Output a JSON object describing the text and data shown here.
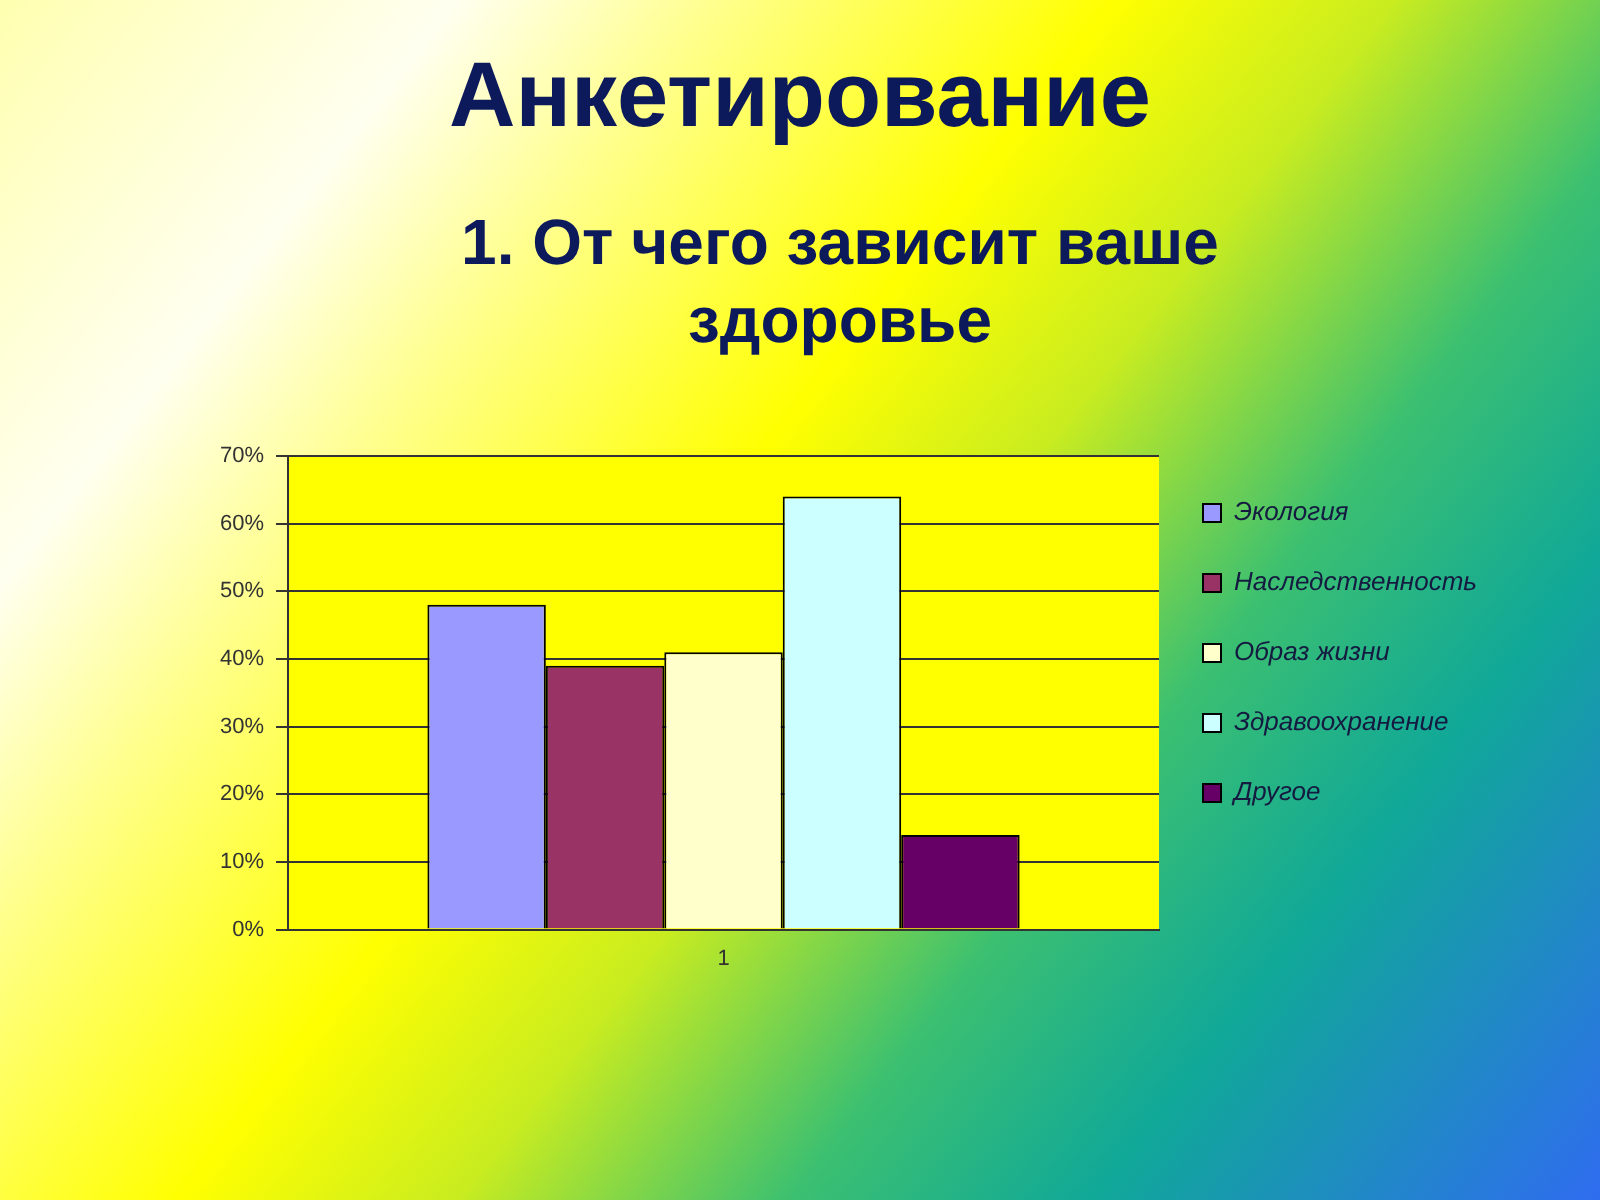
{
  "chart_data": {
    "type": "bar",
    "title": "Анкетирование",
    "subtitle": "1. От чего зависит ваше здоровье",
    "categories": [
      "1"
    ],
    "series": [
      {
        "name": "Экология",
        "color": "#9999ff",
        "values": [
          48
        ]
      },
      {
        "name": "Наследственность",
        "color": "#993366",
        "values": [
          39
        ]
      },
      {
        "name": "Образ жизни",
        "color": "#ffffcc",
        "values": [
          41
        ]
      },
      {
        "name": "Здравоохранение",
        "color": "#ccffff",
        "values": [
          64
        ]
      },
      {
        "name": "Другое",
        "color": "#660066",
        "values": [
          14
        ]
      }
    ],
    "ylim": [
      0,
      70
    ],
    "yticks": [
      {
        "value": 0,
        "label": "0%"
      },
      {
        "value": 10,
        "label": "10%"
      },
      {
        "value": 20,
        "label": "20%"
      },
      {
        "value": 30,
        "label": "30%"
      },
      {
        "value": 40,
        "label": "40%"
      },
      {
        "value": 50,
        "label": "50%"
      },
      {
        "value": 60,
        "label": "60%"
      },
      {
        "value": 70,
        "label": "70%"
      }
    ],
    "grid": "y",
    "legend": "right"
  }
}
